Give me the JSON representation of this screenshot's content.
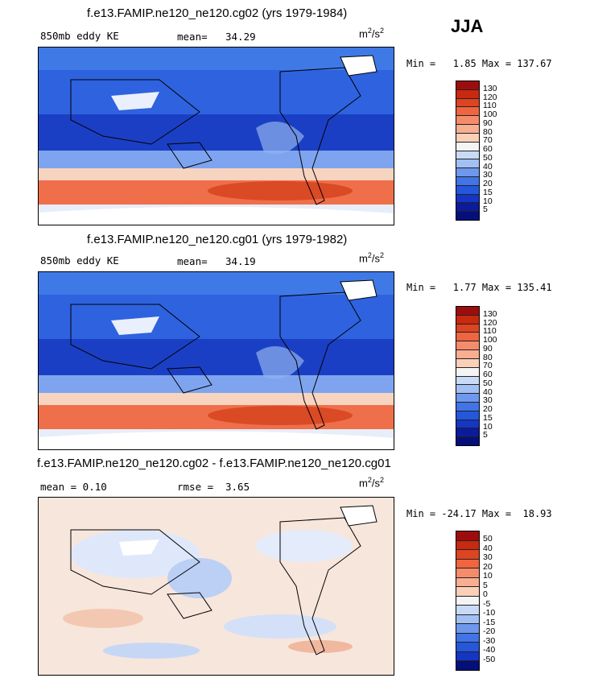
{
  "season": "JJA",
  "units": {
    "base": "m",
    "exp1": "2",
    "sep": "/s",
    "exp2": "2"
  },
  "panels": [
    {
      "title": "f.e13.FAMIP.ne120_ne120.cg02 (yrs 1979-1984)",
      "left_label": "850mb eddy KE",
      "stat_label": "mean=",
      "stat_value": "34.29",
      "minmax": "Min =   1.85 Max = 137.67"
    },
    {
      "title": "f.e13.FAMIP.ne120_ne120.cg01 (yrs 1979-1982)",
      "left_label": "850mb eddy KE",
      "stat_label": "mean=",
      "stat_value": "34.19",
      "minmax": "Min =   1.77 Max = 135.41"
    },
    {
      "title": "f.e13.FAMIP.ne120_ne120.cg02 - f.e13.FAMIP.ne120_ne120.cg01",
      "left_label": "mean =    0.10",
      "stat_label": "rmse =",
      "stat_value": "3.65",
      "minmax": "Min = -24.17 Max =  18.93"
    }
  ],
  "colorbars": {
    "field": {
      "labels": [
        "130",
        "120",
        "110",
        "100",
        "90",
        "80",
        "70",
        "60",
        "50",
        "40",
        "30",
        "20",
        "15",
        "10",
        "5"
      ],
      "colors": [
        "#9e0d0d",
        "#c8290f",
        "#dd4422",
        "#ef6540",
        "#f48c6b",
        "#f8ae90",
        "#fbd0b9",
        "#f4f4f4",
        "#c9daf7",
        "#a2c0f4",
        "#6e98ee",
        "#4174e6",
        "#2457dc",
        "#1536c4",
        "#0b1b9c",
        "#050f7a"
      ]
    },
    "diff": {
      "labels": [
        "50",
        "40",
        "30",
        "20",
        "10",
        "5",
        "0",
        "-5",
        "-10",
        "-15",
        "-20",
        "-30",
        "-40",
        "-50"
      ],
      "colors": [
        "#9e0d0d",
        "#c8290f",
        "#dd4422",
        "#ef6540",
        "#f48c6b",
        "#f8ae90",
        "#fbd0b9",
        "#f4f4f4",
        "#c9daf7",
        "#a2c0f4",
        "#6e98ee",
        "#4174e6",
        "#2457dc",
        "#1536c4",
        "#050f7a"
      ]
    }
  }
}
